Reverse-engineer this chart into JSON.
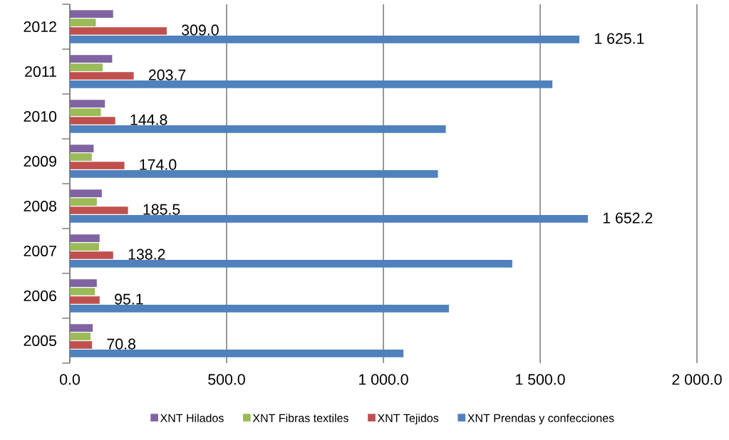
{
  "chart_data": {
    "type": "bar",
    "orientation": "horizontal",
    "categories": [
      "2012",
      "2011",
      "2010",
      "2009",
      "2008",
      "2007",
      "2006",
      "2005"
    ],
    "series": [
      {
        "name": "XNT Hilados",
        "color": "#8064a2",
        "values": [
          138,
          135,
          112,
          76,
          102,
          95,
          86,
          73
        ]
      },
      {
        "name": "XNT Fibras textiles",
        "color": "#9bbb59",
        "values": [
          83,
          105,
          99,
          70,
          86,
          93,
          80,
          66
        ]
      },
      {
        "name": "XNT Tejidos",
        "color": "#c0504d",
        "values": [
          309.0,
          203.7,
          144.8,
          174.0,
          185.5,
          138.2,
          95.1,
          70.8
        ],
        "value_labels": [
          "309.0",
          "203.7",
          "144.8",
          "174.0",
          "185.5",
          "138.2",
          "95.1",
          "70.8"
        ]
      },
      {
        "name": "XNT Prendas y confecciones",
        "color": "#4f81bd",
        "values": [
          1625.1,
          1539,
          1199,
          1174,
          1652.2,
          1411,
          1209,
          1064
        ],
        "value_labels": [
          "1 625.1",
          null,
          null,
          null,
          "1 652.2",
          null,
          null,
          null
        ]
      }
    ],
    "xlim": [
      0,
      2000
    ],
    "xticks": [
      {
        "value": 0,
        "label": "0.0"
      },
      {
        "value": 500,
        "label": "500.0"
      },
      {
        "value": 1000,
        "label": "1 000.0"
      },
      {
        "value": 1500,
        "label": "1 500.0"
      },
      {
        "value": 2000,
        "label": "2 000.0"
      }
    ],
    "grid": "x",
    "legend": "bottom"
  }
}
